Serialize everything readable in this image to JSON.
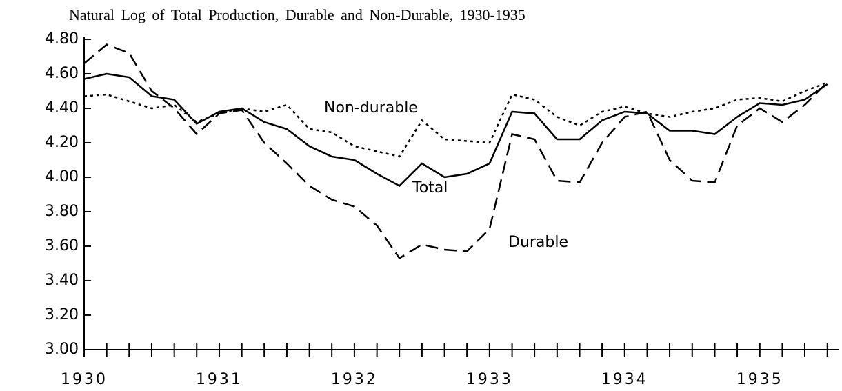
{
  "chart_data": {
    "type": "line",
    "title": "Natural Log of Total Production, Durable and Non-Durable, 1930-1935",
    "x": [
      1930,
      1930.167,
      1930.333,
      1930.5,
      1930.667,
      1930.833,
      1931,
      1931.167,
      1931.333,
      1931.5,
      1931.667,
      1931.833,
      1932,
      1932.167,
      1932.333,
      1932.5,
      1932.667,
      1932.833,
      1933,
      1933.167,
      1933.333,
      1933.5,
      1933.667,
      1933.833,
      1934,
      1934.167,
      1934.333,
      1934.5,
      1934.667,
      1934.833,
      1935,
      1935.167,
      1935.333,
      1935.5
    ],
    "series": [
      {
        "name": "Total",
        "color": "#000000",
        "dash": "solid",
        "values": [
          4.57,
          4.6,
          4.58,
          4.47,
          4.45,
          4.31,
          4.38,
          4.4,
          4.32,
          4.28,
          4.18,
          4.12,
          4.1,
          4.02,
          3.95,
          4.08,
          4.0,
          4.02,
          4.08,
          4.38,
          4.37,
          4.22,
          4.22,
          4.33,
          4.38,
          4.37,
          4.27,
          4.27,
          4.25,
          4.35,
          4.43,
          4.42,
          4.45,
          4.54
        ]
      },
      {
        "name": "Durable",
        "color": "#000000",
        "dash": "long",
        "values": [
          4.66,
          4.77,
          4.72,
          4.5,
          4.4,
          4.25,
          4.37,
          4.39,
          4.2,
          4.08,
          3.95,
          3.87,
          3.83,
          3.72,
          3.53,
          3.61,
          3.58,
          3.57,
          3.7,
          4.25,
          4.22,
          3.98,
          3.97,
          4.2,
          4.35,
          4.38,
          4.1,
          3.98,
          3.97,
          4.3,
          4.4,
          4.32,
          4.42,
          4.55
        ]
      },
      {
        "name": "Non-durable",
        "color": "#000000",
        "dash": "short",
        "values": [
          4.47,
          4.48,
          4.44,
          4.4,
          4.42,
          4.32,
          4.37,
          4.4,
          4.38,
          4.42,
          4.28,
          4.26,
          4.18,
          4.15,
          4.12,
          4.33,
          4.22,
          4.21,
          4.2,
          4.48,
          4.45,
          4.35,
          4.3,
          4.38,
          4.41,
          4.37,
          4.35,
          4.38,
          4.4,
          4.45,
          4.46,
          4.44,
          4.5,
          4.55
        ]
      }
    ],
    "xlim": [
      1930,
      1935.583
    ],
    "xticks": [
      1930,
      1931,
      1932,
      1933,
      1934,
      1935
    ],
    "minor_xticks": [
      1930.167,
      1930.333,
      1930.5,
      1930.667,
      1930.833,
      1931.167,
      1931.333,
      1931.5,
      1931.667,
      1931.833,
      1932.167,
      1932.333,
      1932.5,
      1932.667,
      1932.833,
      1933.167,
      1933.333,
      1933.5,
      1933.667,
      1933.833,
      1934.167,
      1934.333,
      1934.5,
      1934.667,
      1934.833,
      1935.167,
      1935.333,
      1935.5
    ],
    "ylim": [
      3.0,
      4.8
    ],
    "yticks": [
      {
        "value": 3.0,
        "label": "3.00"
      },
      {
        "value": 3.2,
        "label": "3.20"
      },
      {
        "value": 3.4,
        "label": "3.40"
      },
      {
        "value": 3.6,
        "label": "3.60"
      },
      {
        "value": 3.8,
        "label": "3.80"
      },
      {
        "value": 4.0,
        "label": "4.00"
      },
      {
        "value": 4.2,
        "label": "4.20"
      },
      {
        "value": 4.4,
        "label": "4.40"
      },
      {
        "value": 4.6,
        "label": "4.60"
      },
      {
        "value": 4.8,
        "label": "4.80"
      }
    ],
    "grid": false
  }
}
